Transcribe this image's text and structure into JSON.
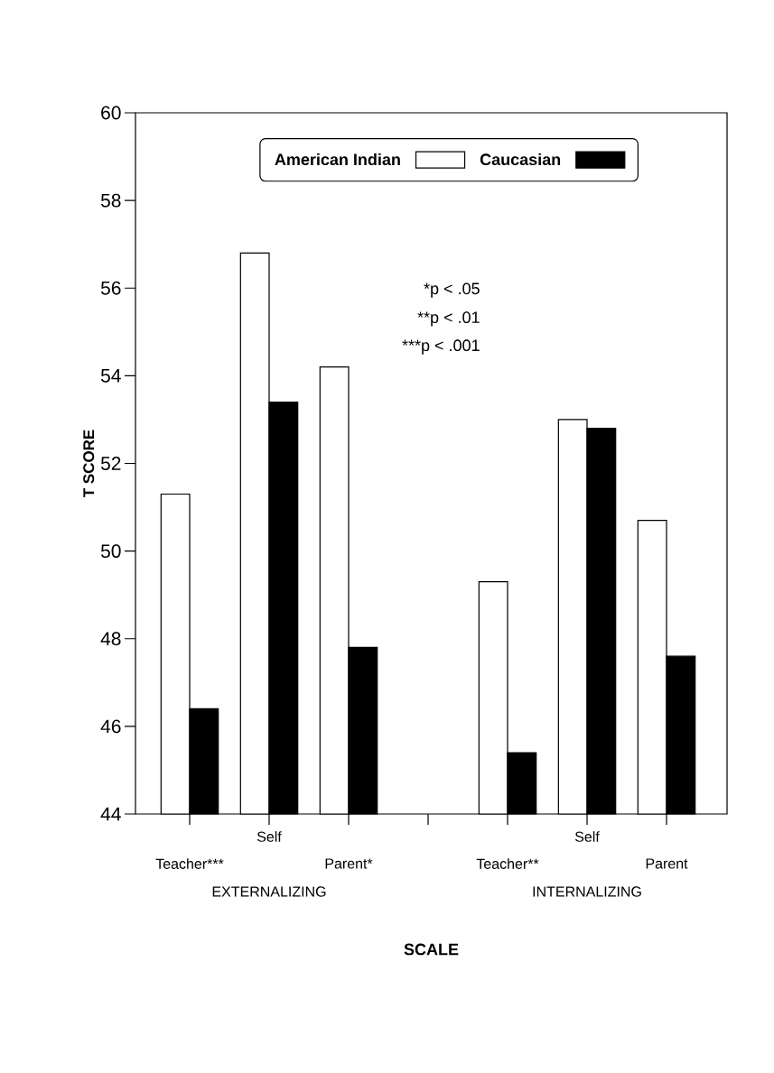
{
  "chart_data": {
    "type": "bar",
    "categories": [
      "Teacher***",
      "Self",
      "Parent*",
      null,
      "Teacher**",
      "Self",
      "Parent"
    ],
    "series": [
      {
        "name": "American Indian",
        "color": "#ffffff",
        "values": [
          51.3,
          56.8,
          54.2,
          null,
          49.3,
          53.0,
          50.7
        ]
      },
      {
        "name": "Caucasian",
        "color": "#000000",
        "values": [
          46.4,
          53.4,
          47.8,
          null,
          45.4,
          52.8,
          47.6
        ]
      }
    ],
    "xlabel": "SCALE",
    "ylabel": "T SCORE",
    "ylim": [
      44,
      60
    ],
    "yticks": [
      44,
      46,
      48,
      50,
      52,
      54,
      56,
      58,
      60
    ],
    "legend": "top",
    "annotations": [
      "*p < .05",
      "**p < .01",
      "***p < .001",
      "EXTERNALIZING",
      "INTERNALIZING"
    ]
  }
}
